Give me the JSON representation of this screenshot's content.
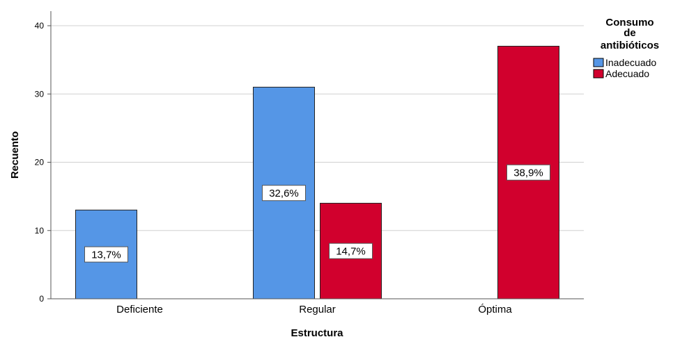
{
  "chart_data": {
    "type": "bar",
    "categories": [
      "Deficiente",
      "Regular",
      "Óptima"
    ],
    "series": [
      {
        "name": "Inadecuado",
        "color": "#5596E6",
        "values": [
          13,
          31,
          null
        ],
        "labels": [
          "13,7%",
          "32,6%",
          null
        ]
      },
      {
        "name": "Adecuado",
        "color": "#D1002D",
        "values": [
          null,
          14,
          37
        ],
        "labels": [
          null,
          "14,7%",
          "38,9%"
        ]
      }
    ],
    "xlabel": "Estructura",
    "ylabel": "Recuento",
    "ylim": [
      0,
      40
    ],
    "yticks": [
      0,
      10,
      20,
      30,
      40
    ],
    "grid": true,
    "legend": {
      "title_lines": [
        "Consumo",
        "de",
        "antibióticos"
      ],
      "placement": "top-right"
    }
  }
}
